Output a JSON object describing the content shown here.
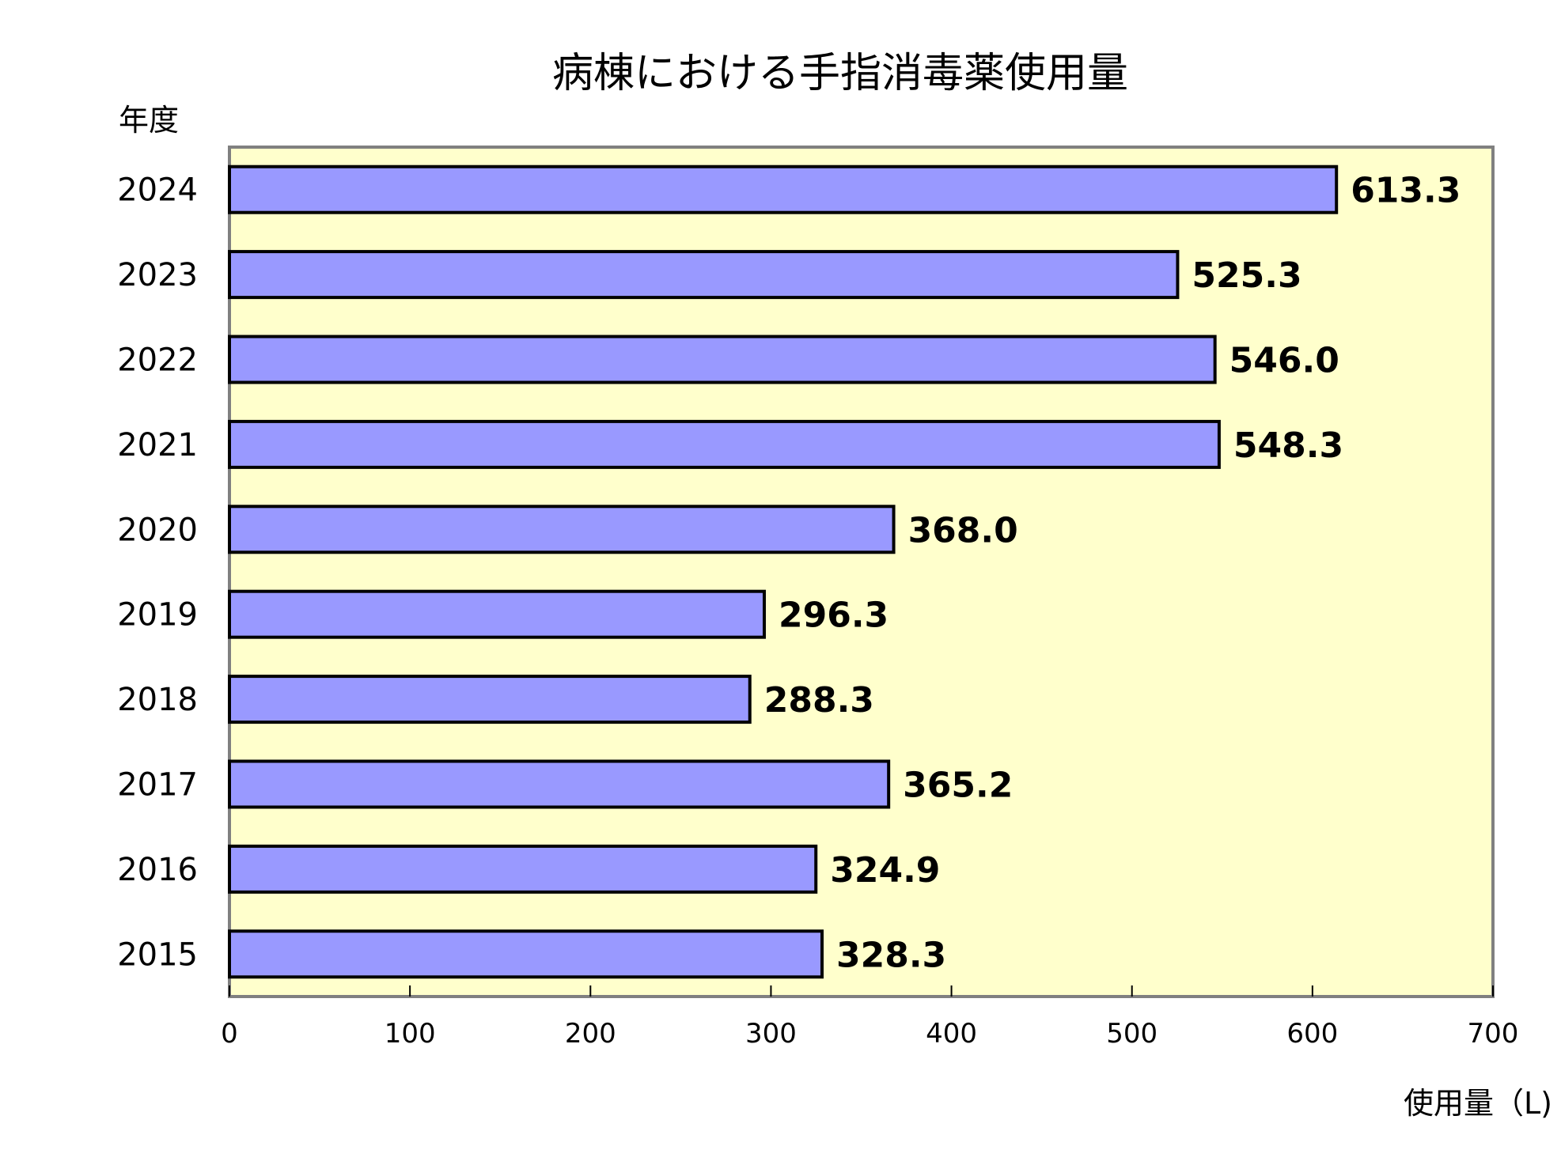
{
  "chart_data": {
    "type": "bar",
    "orientation": "horizontal",
    "title": "病棟における手指消毒薬使用量",
    "xlabel": "使用量（L)",
    "ylabel": "年度",
    "categories": [
      "2024",
      "2023",
      "2022",
      "2021",
      "2020",
      "2019",
      "2018",
      "2017",
      "2016",
      "2015"
    ],
    "values": [
      613.3,
      525.3,
      546.0,
      548.3,
      368.0,
      296.3,
      288.3,
      365.2,
      324.9,
      328.3
    ],
    "value_labels": [
      "613.3",
      "525.3",
      "546.0",
      "548.3",
      "368.0",
      "296.3",
      "288.3",
      "365.2",
      "324.9",
      "328.3"
    ],
    "xlim": [
      0,
      700
    ],
    "xticks": [
      "0",
      "100",
      "200",
      "300",
      "400",
      "500",
      "600",
      "700"
    ],
    "grid": false,
    "legend": "none",
    "colors": {
      "bar": "#9999FF",
      "bar_border": "#000000",
      "plot_bg": "#FFFFCC",
      "plot_border": "#808080"
    }
  }
}
